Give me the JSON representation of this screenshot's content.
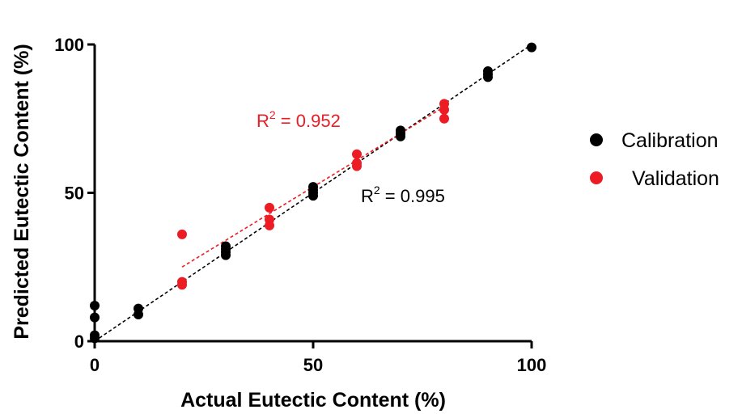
{
  "colors": {
    "calibration": "#000000",
    "validation": "#ed1c24",
    "axis": "#000000"
  },
  "chart_data": {
    "type": "scatter",
    "xlabel": "Actual Eutectic Content (%)",
    "ylabel": "Predicted Eutectic Content (%)",
    "xlim": [
      0,
      100
    ],
    "ylim": [
      0,
      100
    ],
    "xticks": [
      "0",
      "50",
      "100"
    ],
    "yticks": [
      "0",
      "50",
      "100"
    ],
    "grid": false,
    "legend_position": "right",
    "series": [
      {
        "name": "Calibration",
        "color": "#000000",
        "points": [
          {
            "x": 0,
            "y": 1
          },
          {
            "x": 0,
            "y": 2
          },
          {
            "x": 0,
            "y": 8
          },
          {
            "x": 0,
            "y": 12
          },
          {
            "x": 10,
            "y": 9
          },
          {
            "x": 10,
            "y": 11
          },
          {
            "x": 30,
            "y": 29
          },
          {
            "x": 30,
            "y": 30
          },
          {
            "x": 30,
            "y": 31
          },
          {
            "x": 30,
            "y": 32
          },
          {
            "x": 50,
            "y": 49
          },
          {
            "x": 50,
            "y": 50
          },
          {
            "x": 50,
            "y": 51
          },
          {
            "x": 50,
            "y": 52
          },
          {
            "x": 70,
            "y": 69
          },
          {
            "x": 70,
            "y": 70
          },
          {
            "x": 70,
            "y": 71
          },
          {
            "x": 90,
            "y": 89
          },
          {
            "x": 90,
            "y": 90
          },
          {
            "x": 90,
            "y": 91
          },
          {
            "x": 100,
            "y": 99
          }
        ],
        "fit_line": {
          "x": [
            0,
            100
          ],
          "y": [
            0,
            100
          ]
        }
      },
      {
        "name": "Validation",
        "color": "#ed1c24",
        "points": [
          {
            "x": 20,
            "y": 19
          },
          {
            "x": 20,
            "y": 20
          },
          {
            "x": 20,
            "y": 36
          },
          {
            "x": 40,
            "y": 39
          },
          {
            "x": 40,
            "y": 41
          },
          {
            "x": 40,
            "y": 45
          },
          {
            "x": 60,
            "y": 59
          },
          {
            "x": 60,
            "y": 60
          },
          {
            "x": 60,
            "y": 63
          },
          {
            "x": 80,
            "y": 75
          },
          {
            "x": 80,
            "y": 78
          },
          {
            "x": 80,
            "y": 80
          }
        ],
        "fit_line": {
          "x": [
            20,
            80
          ],
          "y": [
            25,
            79
          ]
        }
      }
    ],
    "annotations": [
      {
        "series": "Validation",
        "base": "R",
        "sup": "2",
        "text": " = 0.952"
      },
      {
        "series": "Calibration",
        "base": "R",
        "sup": "2",
        "text": " = 0.995"
      }
    ]
  }
}
